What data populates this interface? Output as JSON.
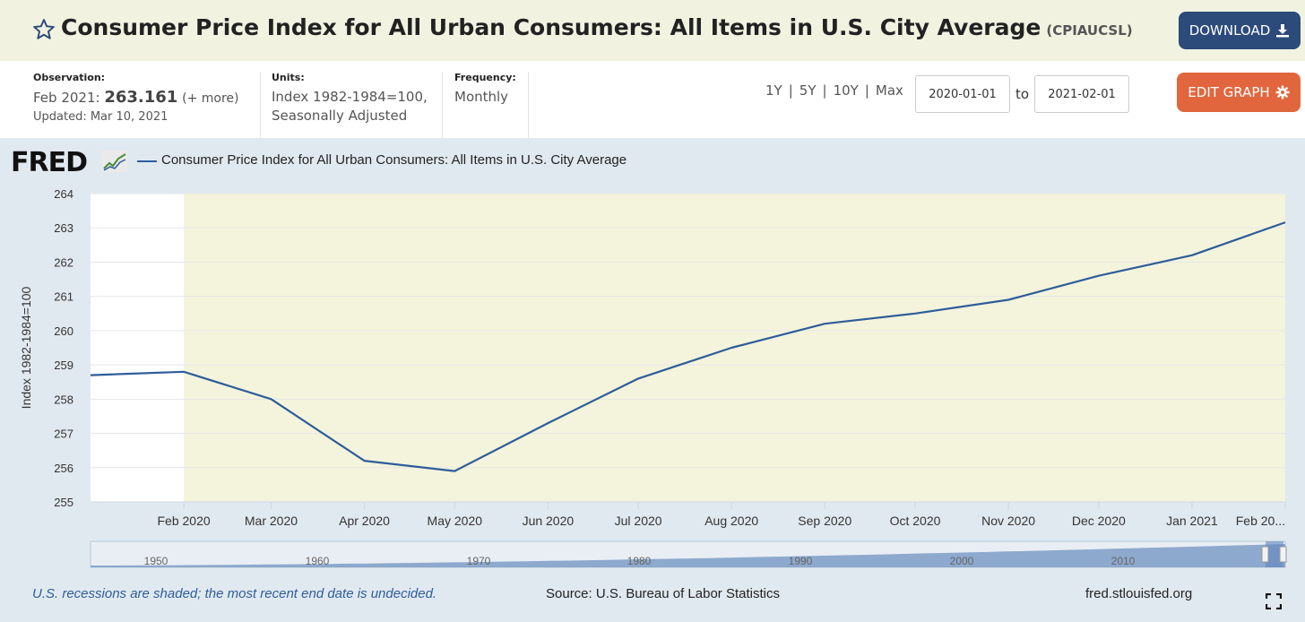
{
  "header": {
    "title": "Consumer Price Index for All Urban Consumers: All Items in U.S. City Average",
    "series_id": "(CPIAUCSL)",
    "download_label": "DOWNLOAD"
  },
  "info": {
    "observation_label": "Observation:",
    "observation_date": "Feb 2021:",
    "observation_value": "263.161",
    "observation_more": "(+ more)",
    "updated": "Updated: Mar 10, 2021",
    "units_label": "Units:",
    "units_line1": "Index 1982-1984=100,",
    "units_line2": "Seasonally Adjusted",
    "frequency_label": "Frequency:",
    "frequency_value": "Monthly"
  },
  "controls": {
    "ranges": [
      "1Y",
      "5Y",
      "10Y",
      "Max"
    ],
    "start_date": "2020-01-01",
    "to_label": "to",
    "end_date": "2021-02-01",
    "edit_label": "EDIT GRAPH"
  },
  "chart_data": {
    "type": "line",
    "title": "",
    "legend": "Consumer Price Index for All Urban Consumers: All Items in U.S. City Average",
    "ylabel": "Index 1982-1984=100",
    "xlabel": "",
    "ylim": [
      255,
      264
    ],
    "yticks": [
      255,
      256,
      257,
      258,
      259,
      260,
      261,
      262,
      263,
      264
    ],
    "x": [
      "2020-01-01",
      "2020-02-01",
      "2020-03-01",
      "2020-04-01",
      "2020-05-01",
      "2020-06-01",
      "2020-07-01",
      "2020-08-01",
      "2020-09-01",
      "2020-10-01",
      "2020-11-01",
      "2020-12-01",
      "2021-01-01",
      "2021-02-01"
    ],
    "xtick_labels": [
      "Feb 2020",
      "Mar 2020",
      "Apr 2020",
      "May 2020",
      "Jun 2020",
      "Jul 2020",
      "Aug 2020",
      "Sep 2020",
      "Oct 2020",
      "Nov 2020",
      "Dec 2020",
      "Jan 2021",
      "Feb 20..."
    ],
    "series": [
      {
        "name": "Consumer Price Index for All Urban Consumers: All Items in U.S. City Average",
        "values": [
          258.7,
          258.8,
          258.0,
          256.2,
          255.9,
          257.3,
          258.6,
          259.5,
          260.2,
          260.5,
          260.9,
          261.6,
          262.2,
          263.161
        ]
      }
    ],
    "recession_start": "2020-02-01",
    "recession_end": "2021-02-01",
    "grid": true,
    "line_color": "#2e5d9a",
    "recession_color": "#f4f4dc",
    "navigator_labels": [
      "1950",
      "1960",
      "1970",
      "1980",
      "1990",
      "2000",
      "2010"
    ]
  },
  "footer": {
    "recession_note": "U.S. recessions are shaded; the most recent end date is undecided.",
    "source": "Source: U.S. Bureau of Labor Statistics",
    "site": "fred.stlouisfed.org"
  },
  "brand": {
    "logo": "FRED",
    "accent": "#2c4a7a",
    "edit_color": "#e1663e"
  }
}
